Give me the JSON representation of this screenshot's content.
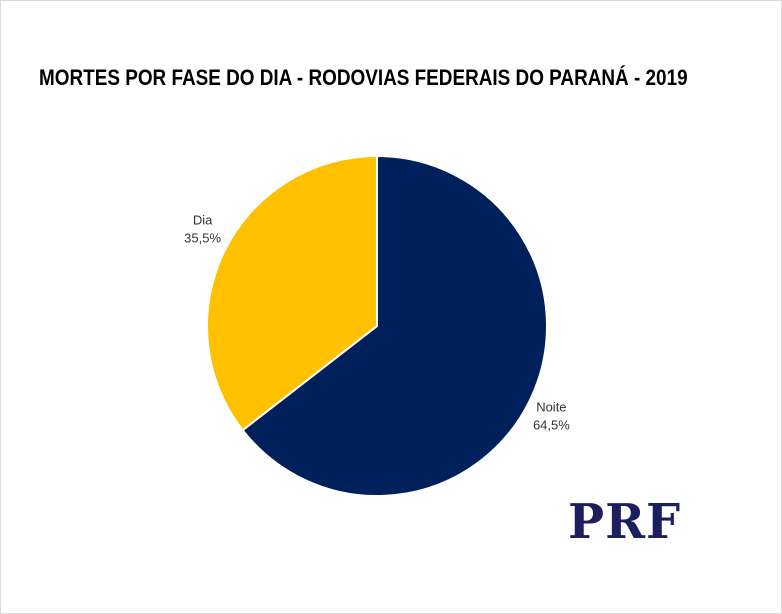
{
  "chart_data": {
    "type": "pie",
    "title": "MORTES POR FASE DO DIA - RODOVIAS FEDERAIS DO PARANÁ - 2019",
    "slices": [
      {
        "label": "Noite",
        "value": 64.5,
        "display": "64,5%",
        "color": "#00205b"
      },
      {
        "label": "Dia",
        "value": 35.5,
        "display": "35,5%",
        "color": "#ffc000"
      }
    ],
    "start_angle_deg": 0,
    "direction": "clockwise",
    "legend": "none"
  },
  "logo": {
    "text": "PRF",
    "color": "#1c1f5e"
  }
}
